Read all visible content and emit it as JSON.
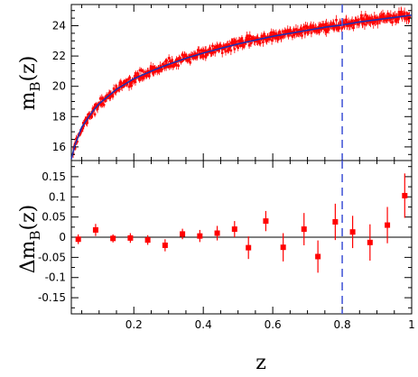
{
  "chart_data": [
    {
      "type": "scatter",
      "panel": "top",
      "xlabel": "",
      "ylabel": "m",
      "ylabel_sub": "B",
      "ylabel_suffix": "(z)",
      "xlim": [
        0.02,
        1.0
      ],
      "ylim": [
        15.1,
        25.4
      ],
      "yticks": [
        16,
        18,
        20,
        22,
        24
      ],
      "ytick_labels": [
        "16",
        "18",
        "20",
        "22",
        "24"
      ],
      "grid": false,
      "data_color": "#ff0000",
      "model_color": "#1f2fb0",
      "reference_line": {
        "x": 0.8,
        "style": "dashed",
        "color": "#4a5bd8"
      },
      "model_curve": {
        "x": [
          0.02,
          0.03,
          0.05,
          0.08,
          0.1,
          0.15,
          0.2,
          0.25,
          0.3,
          0.35,
          0.4,
          0.45,
          0.5,
          0.55,
          0.6,
          0.65,
          0.7,
          0.75,
          0.8,
          0.85,
          0.9,
          0.95,
          1.0
        ],
        "y": [
          15.2,
          16.1,
          17.3,
          18.3,
          18.85,
          19.8,
          20.5,
          21.0,
          21.45,
          21.85,
          22.2,
          22.5,
          22.8,
          23.05,
          23.3,
          23.5,
          23.7,
          23.9,
          24.05,
          24.25,
          24.4,
          24.55,
          24.7
        ]
      },
      "scatter_sigma_mag": 0.15,
      "n_points": 600
    },
    {
      "type": "scatter",
      "panel": "bottom",
      "xlabel": "z",
      "ylabel": "Δm",
      "ylabel_sub": "B",
      "ylabel_suffix": "(z)",
      "xlim": [
        0.02,
        1.0
      ],
      "ylim": [
        -0.19,
        0.19
      ],
      "xticks": [
        0.2,
        0.4,
        0.6,
        0.8,
        1.0
      ],
      "xtick_labels": [
        "0.2",
        "0.4",
        "0.6",
        "0.8",
        "1"
      ],
      "yticks": [
        -0.15,
        -0.1,
        -0.05,
        0,
        0.05,
        0.1,
        0.15
      ],
      "ytick_labels": [
        "-0.15",
        "-0.1",
        "-0.05",
        "0",
        "0.05",
        "0.1",
        "0.15"
      ],
      "grid": false,
      "data_color": "#ff0000",
      "reference_line": {
        "x": 0.8,
        "style": "dashed",
        "color": "#4a5bd8"
      },
      "zero_line": 0,
      "x": [
        0.04,
        0.09,
        0.14,
        0.19,
        0.24,
        0.29,
        0.34,
        0.39,
        0.44,
        0.49,
        0.53,
        0.58,
        0.63,
        0.69,
        0.73,
        0.78,
        0.83,
        0.88,
        0.93,
        0.98
      ],
      "y": [
        -0.005,
        0.018,
        -0.003,
        -0.002,
        -0.007,
        -0.02,
        0.008,
        0.003,
        0.01,
        0.02,
        -0.026,
        0.04,
        -0.025,
        0.02,
        -0.048,
        0.038,
        0.013,
        -0.013,
        0.03,
        0.103
      ],
      "yerr": [
        0.012,
        0.015,
        0.01,
        0.012,
        0.012,
        0.015,
        0.013,
        0.015,
        0.018,
        0.02,
        0.028,
        0.025,
        0.035,
        0.04,
        0.04,
        0.045,
        0.04,
        0.045,
        0.045,
        0.055
      ]
    }
  ]
}
